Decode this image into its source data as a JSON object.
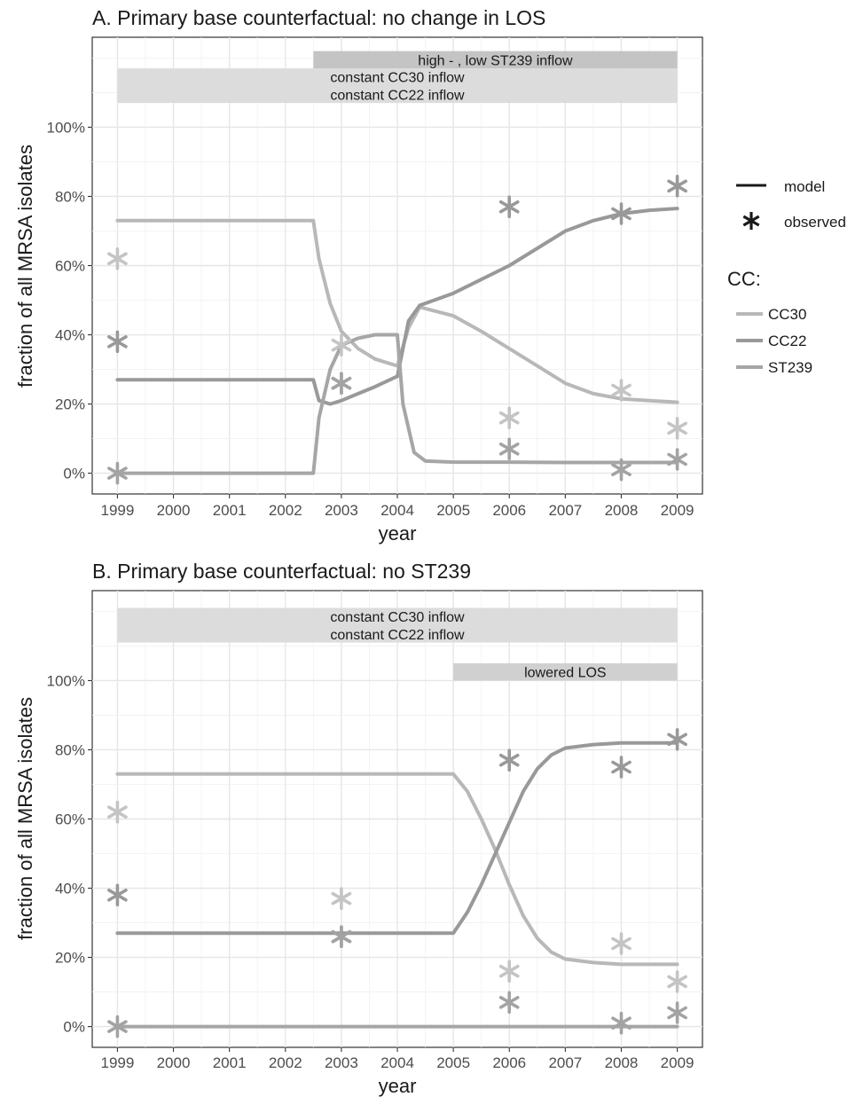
{
  "legend": {
    "type_entries": [
      {
        "key": "model",
        "label": "model",
        "symbol": "line"
      },
      {
        "key": "observed",
        "label": "observed",
        "symbol": "asterisk"
      }
    ],
    "cc_title": "CC:",
    "cc_entries": [
      {
        "name": "CC30",
        "color": "#b8b8b8"
      },
      {
        "name": "CC22",
        "color": "#999999"
      },
      {
        "name": "ST239",
        "color": "#a6a6a6"
      }
    ]
  },
  "chart_data": [
    {
      "type": "line",
      "title": "A. Primary base counterfactual: no change in LOS",
      "xlabel": "year",
      "ylabel": "fraction of all MRSA isolates",
      "xlim": [
        1998.55,
        2009.45
      ],
      "ylim": [
        -0.06,
        1.26
      ],
      "x_ticks": [
        1999,
        2000,
        2001,
        2002,
        2003,
        2004,
        2005,
        2006,
        2007,
        2008,
        2009
      ],
      "y_ticks": [
        0,
        0.2,
        0.4,
        0.6,
        0.8,
        1.0
      ],
      "y_tick_labels": [
        "0%",
        "20%",
        "40%",
        "60%",
        "80%",
        "100%"
      ],
      "grid": true,
      "annotations": [
        {
          "label": "high - , low ST239 inflow",
          "x_start": 2002.5,
          "x_end": 2009,
          "y_range": [
            1.17,
            1.22
          ],
          "color": "#c4c4c4"
        },
        {
          "label": "constant CC30 inflow\nconstant CC22 inflow",
          "x_start": 1999,
          "x_end": 2009,
          "y_range": [
            1.07,
            1.17
          ],
          "color": "#dcdcdc"
        }
      ],
      "series": [
        {
          "name": "CC30",
          "kind": "model",
          "color": "#b8b8b8",
          "x": [
            1999,
            2002.5,
            2002.6,
            2002.8,
            2003,
            2003.3,
            2003.6,
            2004,
            2004.2,
            2004.4,
            2005,
            2005.5,
            2006,
            2006.5,
            2007,
            2007.5,
            2008,
            2008.5,
            2009
          ],
          "y": [
            0.73,
            0.73,
            0.62,
            0.49,
            0.41,
            0.36,
            0.33,
            0.31,
            0.42,
            0.48,
            0.455,
            0.41,
            0.36,
            0.31,
            0.26,
            0.23,
            0.215,
            0.21,
            0.205
          ]
        },
        {
          "name": "CC22",
          "kind": "model",
          "color": "#999999",
          "x": [
            1999,
            2002.5,
            2002.6,
            2002.8,
            2003,
            2003.3,
            2003.6,
            2004,
            2004.2,
            2004.4,
            2005,
            2005.5,
            2006,
            2006.5,
            2007,
            2007.5,
            2008,
            2008.5,
            2009
          ],
          "y": [
            0.27,
            0.27,
            0.21,
            0.2,
            0.21,
            0.23,
            0.25,
            0.28,
            0.44,
            0.485,
            0.52,
            0.56,
            0.6,
            0.65,
            0.7,
            0.73,
            0.75,
            0.76,
            0.765
          ]
        },
        {
          "name": "ST239",
          "kind": "model",
          "color": "#a6a6a6",
          "x": [
            1999,
            2002.5,
            2002.6,
            2002.8,
            2003,
            2003.3,
            2003.6,
            2004,
            2004.1,
            2004.3,
            2004.5,
            2005,
            2006,
            2007,
            2008,
            2009
          ],
          "y": [
            0,
            0,
            0.16,
            0.3,
            0.37,
            0.39,
            0.4,
            0.4,
            0.2,
            0.06,
            0.035,
            0.032,
            0.032,
            0.031,
            0.031,
            0.031
          ]
        },
        {
          "name": "CC30",
          "kind": "observed",
          "color": "#c4c4c4",
          "x": [
            1999,
            2003,
            2006,
            2008,
            2009
          ],
          "y": [
            0.62,
            0.37,
            0.16,
            0.24,
            0.13
          ]
        },
        {
          "name": "CC22",
          "kind": "observed",
          "color": "#999999",
          "x": [
            1999,
            2003,
            2006,
            2008,
            2009
          ],
          "y": [
            0.38,
            0.26,
            0.77,
            0.75,
            0.83
          ]
        },
        {
          "name": "ST239",
          "kind": "observed",
          "color": "#a3a3a3",
          "x": [
            1999,
            2003,
            2006,
            2008,
            2009
          ],
          "y": [
            0,
            0.26,
            0.07,
            0.01,
            0.04
          ]
        }
      ]
    },
    {
      "type": "line",
      "title": "B. Primary base counterfactual: no ST239",
      "xlabel": "year",
      "ylabel": "fraction of all MRSA isolates",
      "xlim": [
        1998.55,
        2009.45
      ],
      "ylim": [
        -0.06,
        1.26
      ],
      "x_ticks": [
        1999,
        2000,
        2001,
        2002,
        2003,
        2004,
        2005,
        2006,
        2007,
        2008,
        2009
      ],
      "y_ticks": [
        0,
        0.2,
        0.4,
        0.6,
        0.8,
        1.0
      ],
      "y_tick_labels": [
        "0%",
        "20%",
        "40%",
        "60%",
        "80%",
        "100%"
      ],
      "grid": true,
      "annotations": [
        {
          "label": "constant CC30 inflow\nconstant CC22 inflow",
          "x_start": 1999,
          "x_end": 2009,
          "y_range": [
            1.11,
            1.21
          ],
          "color": "#dcdcdc"
        },
        {
          "label": "lowered LOS",
          "x_start": 2005,
          "x_end": 2009,
          "y_range": [
            1.0,
            1.05
          ],
          "color": "#d0d0d0"
        }
      ],
      "series": [
        {
          "name": "CC30",
          "kind": "model",
          "color": "#b8b8b8",
          "x": [
            1999,
            2005,
            2005.25,
            2005.5,
            2005.75,
            2006,
            2006.25,
            2006.5,
            2006.75,
            2007,
            2007.5,
            2008,
            2009
          ],
          "y": [
            0.73,
            0.73,
            0.68,
            0.6,
            0.51,
            0.41,
            0.32,
            0.255,
            0.215,
            0.195,
            0.185,
            0.18,
            0.18
          ]
        },
        {
          "name": "CC22",
          "kind": "model",
          "color": "#999999",
          "x": [
            1999,
            2005,
            2005.25,
            2005.5,
            2005.75,
            2006,
            2006.25,
            2006.5,
            2006.75,
            2007,
            2007.5,
            2008,
            2009
          ],
          "y": [
            0.27,
            0.27,
            0.33,
            0.41,
            0.5,
            0.59,
            0.68,
            0.745,
            0.785,
            0.805,
            0.815,
            0.82,
            0.82
          ]
        },
        {
          "name": "ST239",
          "kind": "model",
          "color": "#a6a6a6",
          "x": [
            1999,
            2009
          ],
          "y": [
            0,
            0
          ]
        },
        {
          "name": "CC30",
          "kind": "observed",
          "color": "#c4c4c4",
          "x": [
            1999,
            2003,
            2006,
            2008,
            2009
          ],
          "y": [
            0.62,
            0.37,
            0.16,
            0.24,
            0.13
          ]
        },
        {
          "name": "CC22",
          "kind": "observed",
          "color": "#999999",
          "x": [
            1999,
            2003,
            2006,
            2008,
            2009
          ],
          "y": [
            0.38,
            0.26,
            0.77,
            0.75,
            0.83
          ]
        },
        {
          "name": "ST239",
          "kind": "observed",
          "color": "#a3a3a3",
          "x": [
            1999,
            2003,
            2006,
            2008,
            2009
          ],
          "y": [
            0,
            0.26,
            0.07,
            0.01,
            0.04
          ]
        }
      ]
    }
  ]
}
